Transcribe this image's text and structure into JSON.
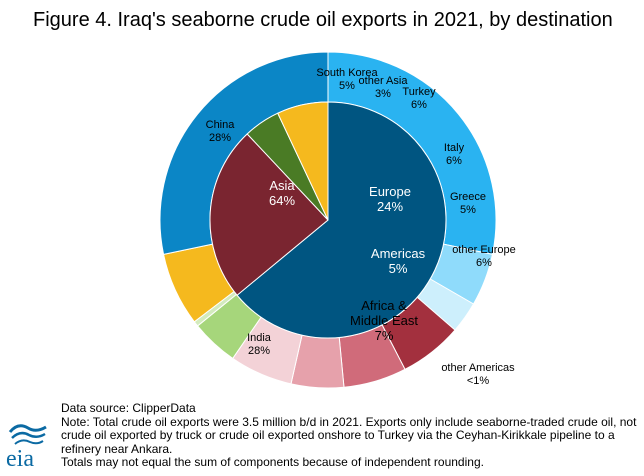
{
  "title": "Figure 4. Iraq's seaborne crude oil exports in 2021, by destination",
  "chart_data": {
    "type": "pie",
    "inner": [
      {
        "label": "Asia",
        "value": 64,
        "value_label": "64%",
        "color": "#005581"
      },
      {
        "label": "Europe",
        "value": 24,
        "value_label": "24%",
        "color": "#7a2530"
      },
      {
        "label": "Americas",
        "value": 5,
        "value_label": "5%",
        "color": "#4a7b25"
      },
      {
        "label": "Africa &\nMiddle East",
        "value": 7,
        "value_label": "7%",
        "color": "#f5b91e"
      }
    ],
    "outer": [
      {
        "label": "China",
        "value": 28,
        "value_label": "28%",
        "color": "#2ab3f1"
      },
      {
        "label": "South Korea",
        "value": 5,
        "value_label": "5%",
        "color": "#8fdbfb"
      },
      {
        "label": "other Asia",
        "value": 3,
        "value_label": "3%",
        "color": "#cdeffc"
      },
      {
        "label": "Turkey",
        "value": 6,
        "value_label": "6%",
        "color": "#a3303e"
      },
      {
        "label": "Italy",
        "value": 6,
        "value_label": "6%",
        "color": "#d06b7a"
      },
      {
        "label": "Greece",
        "value": 5,
        "value_label": "5%",
        "color": "#e6a1ab"
      },
      {
        "label": "other Europe",
        "value": 6,
        "value_label": "6%",
        "color": "#f3d2d7"
      },
      {
        "label": "",
        "value": 4.5,
        "value_label": "",
        "color": "#a6d67b"
      },
      {
        "label": "other Americas",
        "value": 0.5,
        "value_label": "<1%",
        "color": "#d3ebbd"
      },
      {
        "label": "",
        "value": 7,
        "value_label": "",
        "color": "#f5b91e"
      },
      {
        "label": "India",
        "value": 28,
        "value_label": "28%",
        "color": "#0b86c6"
      }
    ]
  },
  "source": {
    "line1": "Data source: ClipperData",
    "line2": "Note: Total crude oil exports were 3.5 million b/d in 2021. Exports only include seaborne-traded crude oil, not crude oil exported by truck or crude oil exported onshore to Turkey via the Ceyhan-Kirikkale pipeline to a refinery near Ankara.",
    "line3": "Totals may not equal the sum of components because of independent rounding."
  },
  "logo": {
    "text": "eia",
    "color": "#0b6aa3"
  }
}
